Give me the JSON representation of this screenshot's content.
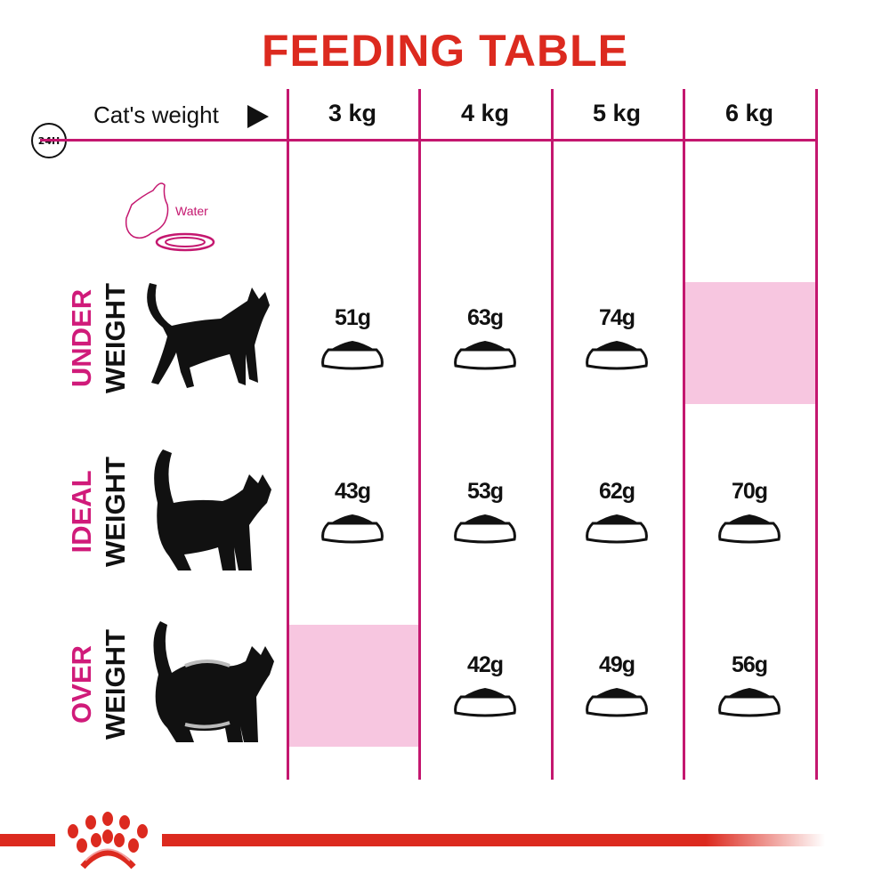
{
  "title": "FEEDING TABLE",
  "header": {
    "clock_label": "24H",
    "weight_label": "Cat's weight",
    "arrow_icon": "triangle-right-icon",
    "columns": [
      "3 kg",
      "4 kg",
      "5 kg",
      "6 kg"
    ]
  },
  "water_label": "Water",
  "rows": [
    {
      "label_top": "UNDER",
      "label_bottom": "WEIGHT",
      "values": [
        "51g",
        "63g",
        "74g",
        null
      ]
    },
    {
      "label_top": "IDEAL",
      "label_bottom": "WEIGHT",
      "values": [
        "43g",
        "53g",
        "62g",
        "70g"
      ]
    },
    {
      "label_top": "OVER",
      "label_bottom": "WEIGHT",
      "values": [
        null,
        "42g",
        "49g",
        "56g"
      ]
    }
  ],
  "colors": {
    "title": "#dc2a1f",
    "lines": "#c4176f",
    "row_label": "#d01b7a",
    "empty_cell": "#f7c6e0",
    "footer_bar": "#dc2a1f"
  }
}
